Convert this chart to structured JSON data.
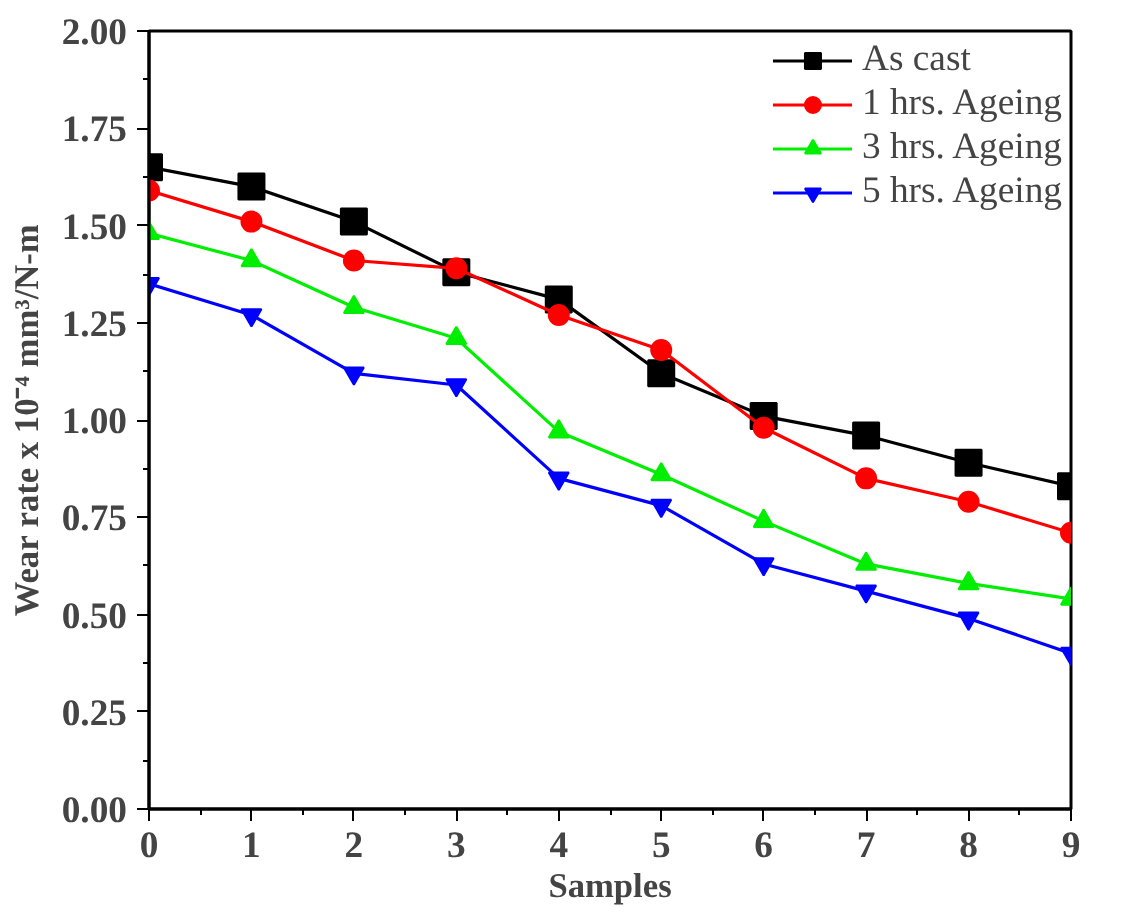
{
  "chart_data": {
    "type": "line",
    "xlabel": "Samples",
    "ylabel": "Wear rate x 10⁻⁴ mm³/N-m",
    "x": [
      0,
      1,
      2,
      3,
      4,
      5,
      6,
      7,
      8,
      9
    ],
    "series": [
      {
        "name": "As cast",
        "color": "#000000",
        "marker": "square",
        "values": [
          1.65,
          1.6,
          1.51,
          1.38,
          1.31,
          1.12,
          1.01,
          0.96,
          0.89,
          0.83
        ]
      },
      {
        "name": "1 hrs. Ageing",
        "color": "#ff0000",
        "marker": "circle",
        "values": [
          1.59,
          1.51,
          1.41,
          1.39,
          1.27,
          1.18,
          0.98,
          0.85,
          0.79,
          0.71
        ]
      },
      {
        "name": "3 hrs. Ageing",
        "color": "#00ee00",
        "marker": "triangle",
        "values": [
          1.48,
          1.41,
          1.29,
          1.21,
          0.97,
          0.86,
          0.74,
          0.63,
          0.58,
          0.54
        ]
      },
      {
        "name": "5 hrs. Ageing",
        "color": "#0000ff",
        "marker": "triangle_down",
        "values": [
          1.35,
          1.27,
          1.12,
          1.09,
          0.85,
          0.78,
          0.63,
          0.56,
          0.49,
          0.4
        ]
      }
    ],
    "xlim": [
      0,
      9
    ],
    "xticks": [
      0,
      1,
      2,
      3,
      4,
      5,
      6,
      7,
      8,
      9
    ],
    "ylim": [
      0,
      2
    ],
    "yticks": [
      {
        "value": 0,
        "label": "0.00"
      },
      {
        "value": 0.25,
        "label": "0.25"
      },
      {
        "value": 0.5,
        "label": "0.50"
      },
      {
        "value": 0.75,
        "label": "0.75"
      },
      {
        "value": 1,
        "label": "1.00"
      },
      {
        "value": 1.25,
        "label": "1.25"
      },
      {
        "value": 1.5,
        "label": "1.50"
      },
      {
        "value": 1.75,
        "label": "1.75"
      },
      {
        "value": 2,
        "label": "2.00"
      }
    ],
    "grid": false,
    "legend": "top right",
    "line_style": "solid"
  }
}
